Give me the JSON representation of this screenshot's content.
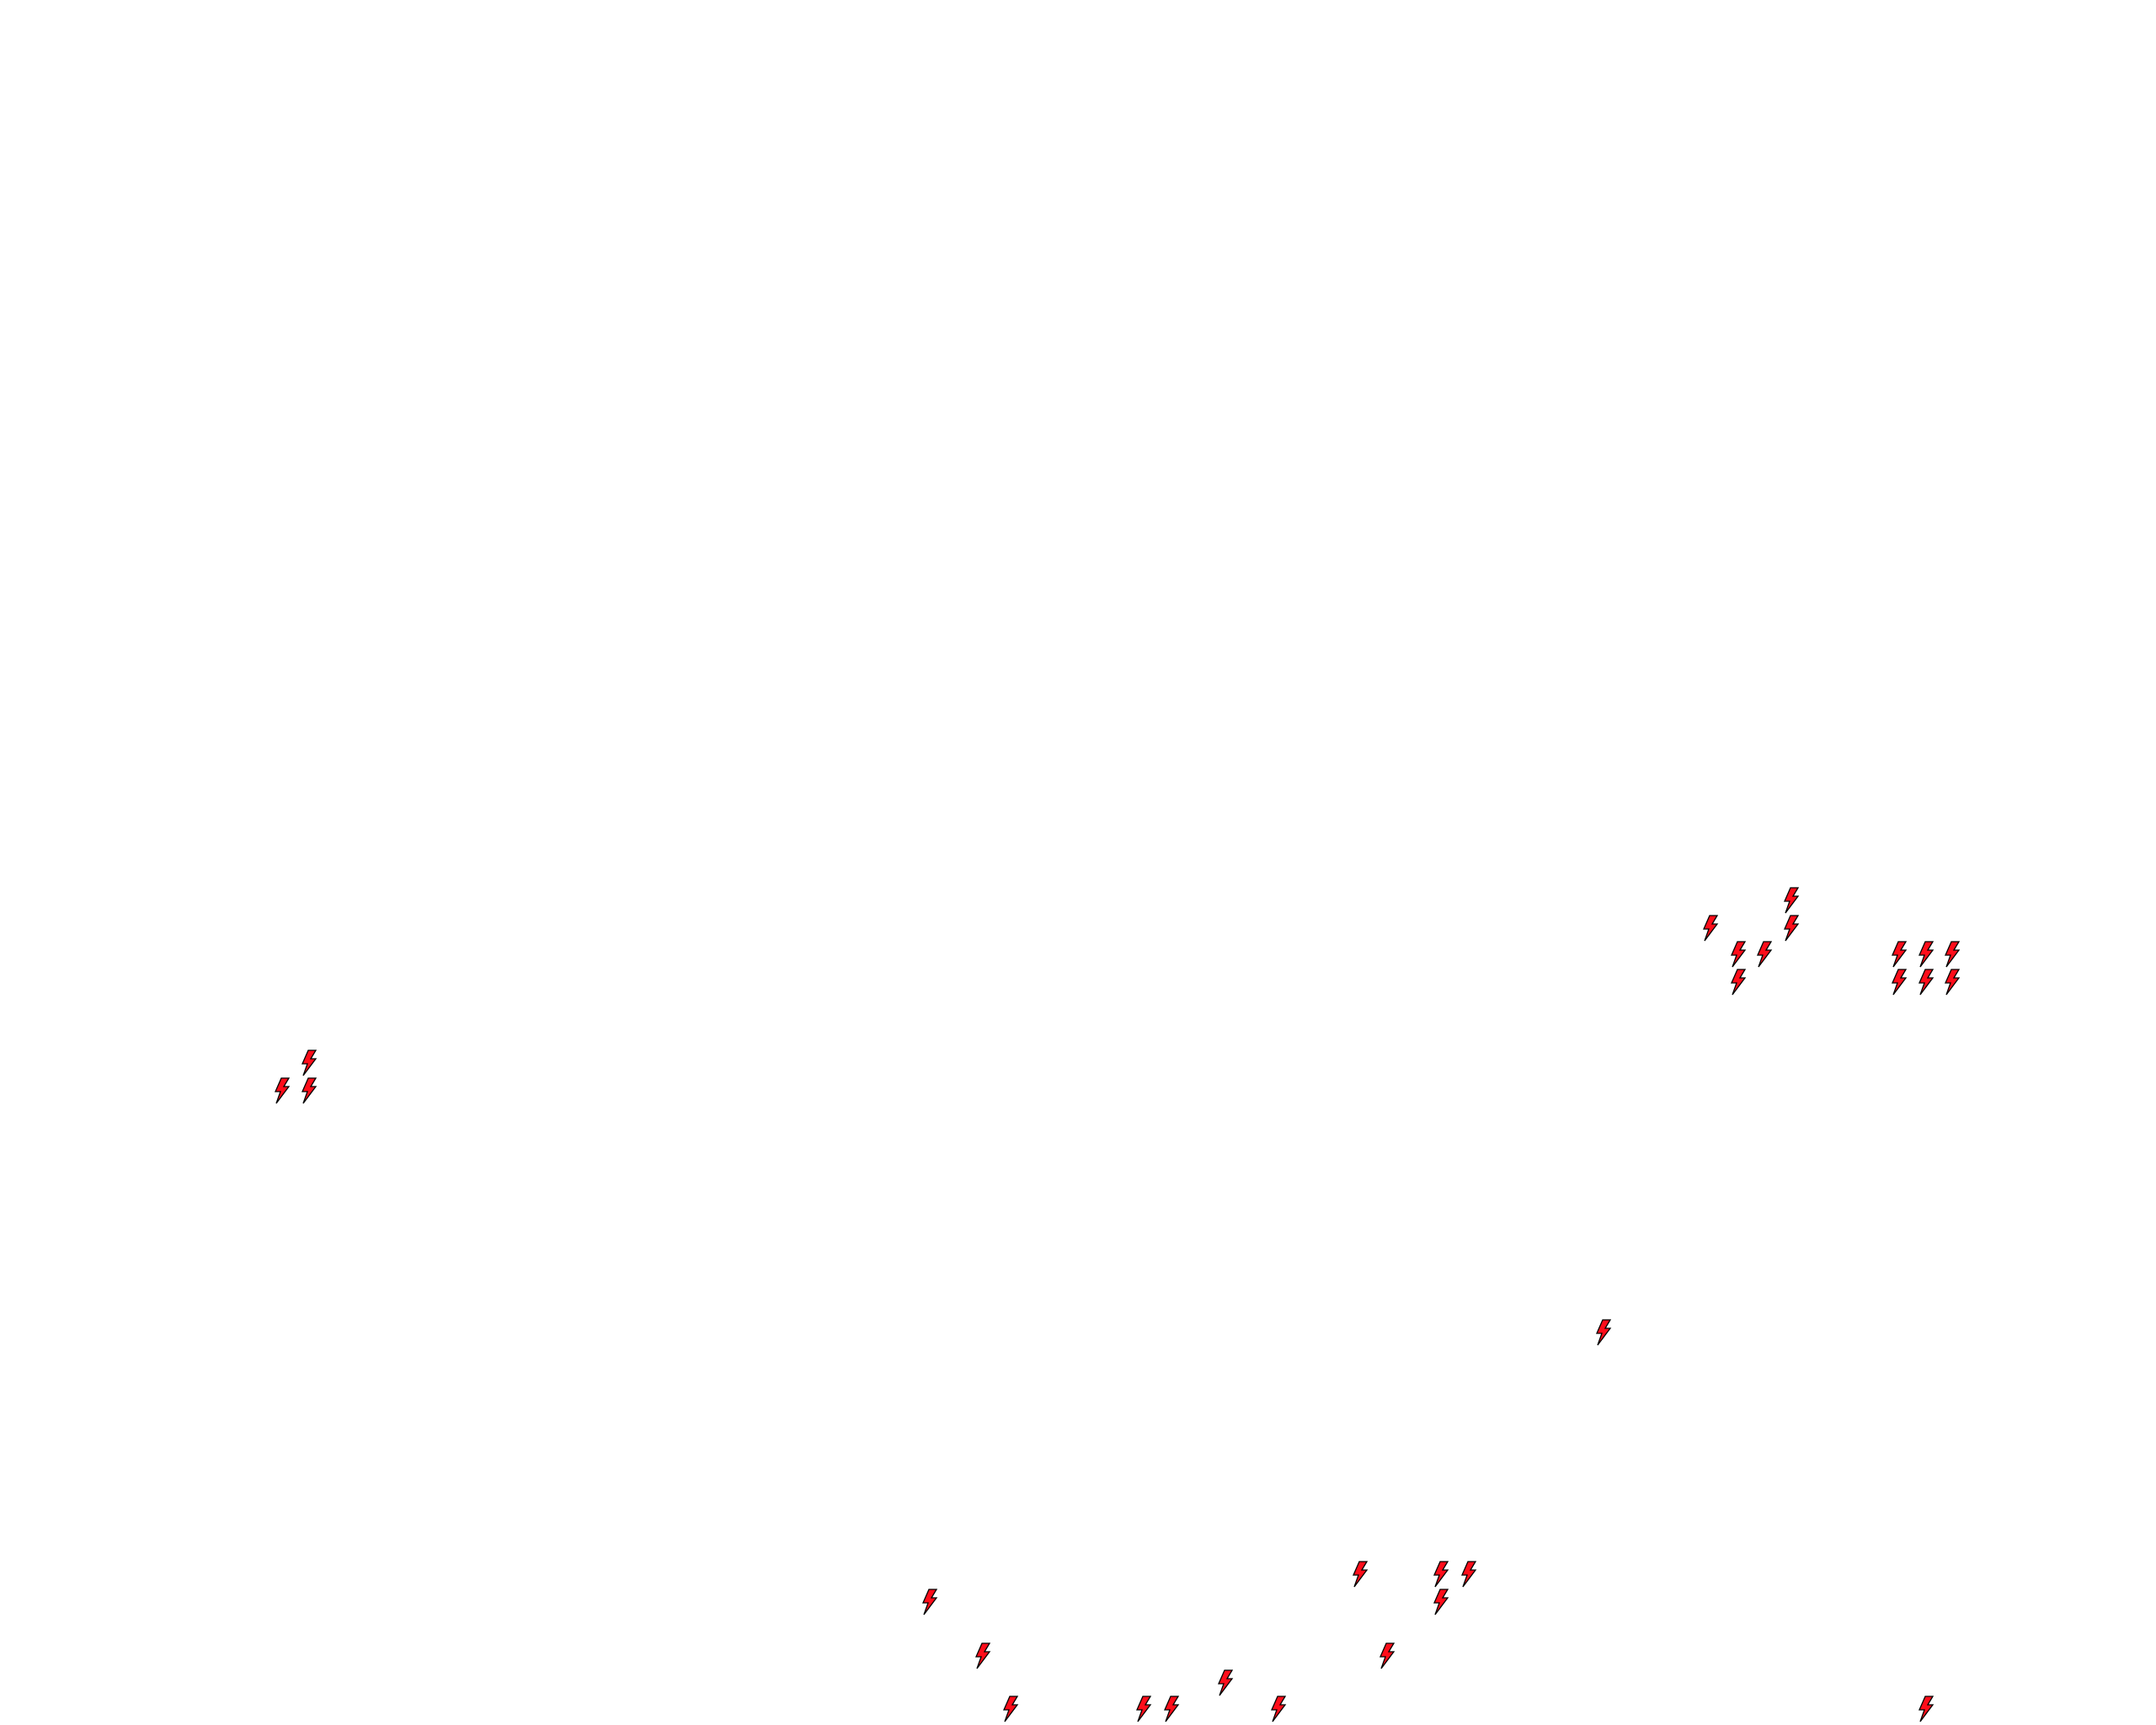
{
  "map": {
    "marker_icon": "lightning-bolt-icon",
    "marker_fill": "#ff0d1a",
    "marker_stroke": "#000000"
  }
}
